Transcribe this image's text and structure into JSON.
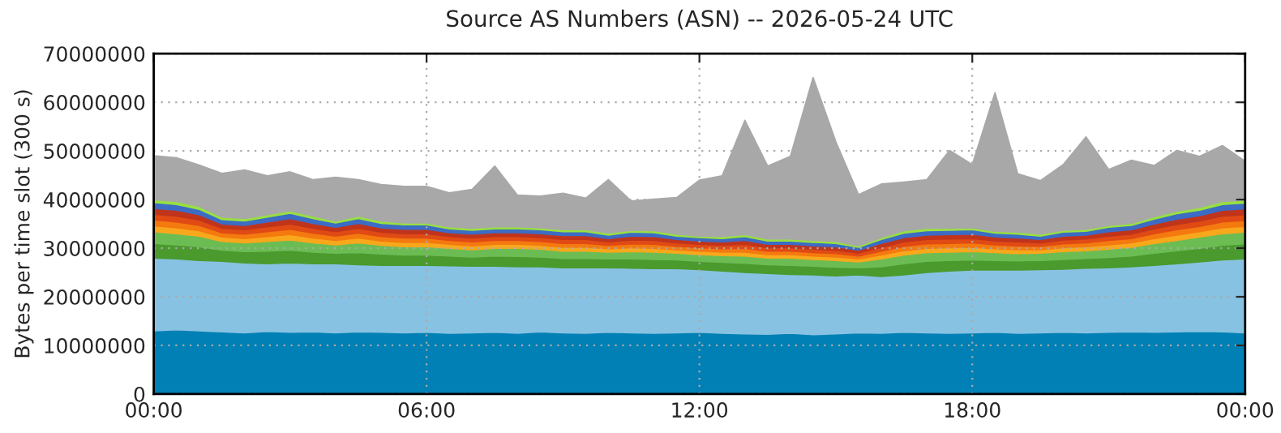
{
  "chart_data": {
    "type": "area",
    "stacked": true,
    "title": "Source AS Numbers (ASN) -- 2026-05-24 UTC",
    "ylabel": "Bytes per time slot (300 s)",
    "x": [
      0,
      0.5,
      1,
      1.5,
      2,
      2.5,
      3,
      3.5,
      4,
      4.5,
      5,
      5.5,
      6,
      6.5,
      7,
      7.5,
      8,
      8.5,
      9,
      9.5,
      10,
      10.5,
      11,
      11.5,
      12,
      12.5,
      13,
      13.5,
      14,
      14.5,
      15,
      15.5,
      16,
      16.5,
      17,
      17.5,
      18,
      18.5,
      19,
      19.5,
      20,
      20.5,
      21,
      21.5,
      22,
      22.5,
      23,
      23.5,
      24
    ],
    "xlim": [
      0,
      24
    ],
    "xticks": [
      {
        "value": 0,
        "label": "00:00"
      },
      {
        "value": 6,
        "label": "06:00"
      },
      {
        "value": 12,
        "label": "12:00"
      },
      {
        "value": 18,
        "label": "18:00"
      },
      {
        "value": 24,
        "label": "00:00"
      }
    ],
    "ylim": [
      0,
      70000000
    ],
    "yticks": [
      0,
      10000000,
      20000000,
      30000000,
      40000000,
      50000000,
      60000000,
      70000000
    ],
    "grid": true,
    "legend": false,
    "series": [
      {
        "color": "#0080b4",
        "values": [
          13000000.0,
          13200000.0,
          13000000.0,
          12800000.0,
          12600000.0,
          12900000.0,
          12700000.0,
          12800000.0,
          12600000.0,
          12800000.0,
          12700000.0,
          12600000.0,
          12700000.0,
          12500000.0,
          12600000.0,
          12700000.0,
          12500000.0,
          12800000.0,
          12600000.0,
          12500000.0,
          12700000.0,
          12600000.0,
          12500000.0,
          12600000.0,
          12700000.0,
          12500000.0,
          12400000.0,
          12300000.0,
          12500000.0,
          12200000.0,
          12400000.0,
          12600000.0,
          12500000.0,
          12700000.0,
          12600000.0,
          12500000.0,
          12600000.0,
          12700000.0,
          12500000.0,
          12600000.0,
          12700000.0,
          12600000.0,
          12700000.0,
          12800000.0,
          12700000.0,
          12800000.0,
          12900000.0,
          12800000.0,
          12600000.0
        ]
      },
      {
        "color": "#88c2e2",
        "values": [
          15000000.0,
          14600000.0,
          14500000.0,
          14500000.0,
          14400000.0,
          13900000.0,
          14300000.0,
          14000000.0,
          14200000.0,
          13800000.0,
          13800000.0,
          13900000.0,
          13800000.0,
          13900000.0,
          13700000.0,
          13600000.0,
          13700000.0,
          13400000.0,
          13400000.0,
          13500000.0,
          13300000.0,
          13300000.0,
          13300000.0,
          13200000.0,
          12900000.0,
          12800000.0,
          12600000.0,
          12500000.0,
          12100000.0,
          12300000.0,
          11900000.0,
          11900000.0,
          11700000.0,
          11800000.0,
          12400000.0,
          12800000.0,
          12900000.0,
          12800000.0,
          13000000.0,
          13000000.0,
          13000000.0,
          13300000.0,
          13300000.0,
          13400000.0,
          13800000.0,
          14000000.0,
          14300000.0,
          14800000.0,
          15200000.0
        ]
      },
      {
        "color": "#4a9a2e",
        "values": [
          3000000.0,
          2900000.0,
          2800000.0,
          2300000.0,
          2300000.0,
          2600000.0,
          2600000.0,
          2400000.0,
          2200000.0,
          2500000.0,
          2300000.0,
          2100000.0,
          2100000.0,
          2000000.0,
          1900000.0,
          2100000.0,
          2100000.0,
          2000000.0,
          1900000.0,
          1900000.0,
          1800000.0,
          1900000.0,
          1900000.0,
          1800000.0,
          1700000.0,
          1800000.0,
          1900000.0,
          1800000.0,
          1900000.0,
          1800000.0,
          1800000.0,
          1500000.0,
          2000000.0,
          2300000.0,
          2300000.0,
          2200000.0,
          2100000.0,
          2000000.0,
          1900000.0,
          1900000.0,
          2000000.0,
          2000000.0,
          2100000.0,
          2200000.0,
          2500000.0,
          2700000.0,
          2800000.0,
          3000000.0,
          3100000.0
        ]
      },
      {
        "color": "#6cbc54",
        "values": [
          2400000.0,
          2300000.0,
          2200000.0,
          1800000.0,
          1800000.0,
          2000000.0,
          2100000.0,
          1900000.0,
          1700000.0,
          2000000.0,
          1800000.0,
          1700000.0,
          1700000.0,
          1600000.0,
          1500000.0,
          1600000.0,
          1700000.0,
          1600000.0,
          1500000.0,
          1500000.0,
          1400000.0,
          1500000.0,
          1500000.0,
          1400000.0,
          1400000.0,
          1400000.0,
          1500000.0,
          1400000.0,
          1500000.0,
          1400000.0,
          1400000.0,
          1200000.0,
          1600000.0,
          1800000.0,
          1800000.0,
          1700000.0,
          1700000.0,
          1600000.0,
          1500000.0,
          1500000.0,
          1600000.0,
          1600000.0,
          1700000.0,
          1800000.0,
          2000000.0,
          2100000.0,
          2300000.0,
          2400000.0,
          2400000.0
        ]
      },
      {
        "color": "#f8a81c",
        "values": [
          1200000.0,
          1200000.0,
          1100000.0,
          900000.0,
          900000.0,
          1000000.0,
          1100000.0,
          1000000.0,
          900000.0,
          1000000.0,
          900000.0,
          900000.0,
          900000.0,
          800000.0,
          800000.0,
          800000.0,
          800000.0,
          800000.0,
          800000.0,
          800000.0,
          700000.0,
          800000.0,
          800000.0,
          700000.0,
          700000.0,
          700000.0,
          800000.0,
          700000.0,
          700000.0,
          700000.0,
          700000.0,
          600000.0,
          800000.0,
          900000.0,
          900000.0,
          900000.0,
          900000.0,
          800000.0,
          800000.0,
          700000.0,
          800000.0,
          800000.0,
          900000.0,
          900000.0,
          1000000.0,
          1100000.0,
          1100000.0,
          1200000.0,
          1200000.0
        ]
      },
      {
        "color": "#f47a10",
        "values": [
          1200000.0,
          1200000.0,
          1100000.0,
          900000.0,
          900000.0,
          1000000.0,
          1100000.0,
          1000000.0,
          900000.0,
          1000000.0,
          900000.0,
          900000.0,
          900000.0,
          800000.0,
          800000.0,
          800000.0,
          800000.0,
          800000.0,
          800000.0,
          800000.0,
          700000.0,
          800000.0,
          800000.0,
          700000.0,
          700000.0,
          700000.0,
          800000.0,
          700000.0,
          700000.0,
          700000.0,
          700000.0,
          600000.0,
          800000.0,
          900000.0,
          900000.0,
          900000.0,
          900000.0,
          800000.0,
          800000.0,
          700000.0,
          800000.0,
          800000.0,
          900000.0,
          900000.0,
          1000000.0,
          1100000.0,
          1100000.0,
          1200000.0,
          1200000.0
        ]
      },
      {
        "color": "#e04a14",
        "values": [
          1200000.0,
          1200000.0,
          1100000.0,
          900000.0,
          900000.0,
          1000000.0,
          1100000.0,
          1000000.0,
          900000.0,
          1000000.0,
          900000.0,
          900000.0,
          900000.0,
          800000.0,
          800000.0,
          800000.0,
          800000.0,
          800000.0,
          800000.0,
          800000.0,
          700000.0,
          800000.0,
          800000.0,
          700000.0,
          700000.0,
          700000.0,
          800000.0,
          700000.0,
          700000.0,
          700000.0,
          700000.0,
          600000.0,
          800000.0,
          900000.0,
          900000.0,
          900000.0,
          900000.0,
          800000.0,
          800000.0,
          700000.0,
          800000.0,
          800000.0,
          900000.0,
          900000.0,
          1000000.0,
          1100000.0,
          1100000.0,
          1200000.0,
          1200000.0
        ]
      },
      {
        "color": "#c0341c",
        "values": [
          1200000.0,
          1200000.0,
          1100000.0,
          900000.0,
          900000.0,
          1000000.0,
          1100000.0,
          1000000.0,
          900000.0,
          1000000.0,
          900000.0,
          900000.0,
          900000.0,
          800000.0,
          800000.0,
          800000.0,
          800000.0,
          800000.0,
          800000.0,
          800000.0,
          700000.0,
          800000.0,
          800000.0,
          700000.0,
          700000.0,
          700000.0,
          800000.0,
          700000.0,
          700000.0,
          700000.0,
          700000.0,
          600000.0,
          800000.0,
          900000.0,
          900000.0,
          900000.0,
          900000.0,
          800000.0,
          800000.0,
          700000.0,
          800000.0,
          800000.0,
          900000.0,
          900000.0,
          1000000.0,
          1100000.0,
          1100000.0,
          1200000.0,
          1200000.0
        ]
      },
      {
        "color": "#3c6cc4",
        "values": [
          1200000.0,
          1200000.0,
          1100000.0,
          900000.0,
          900000.0,
          1000000.0,
          1100000.0,
          1000000.0,
          900000.0,
          1000000.0,
          900000.0,
          900000.0,
          900000.0,
          800000.0,
          800000.0,
          800000.0,
          800000.0,
          800000.0,
          800000.0,
          800000.0,
          700000.0,
          800000.0,
          800000.0,
          700000.0,
          700000.0,
          700000.0,
          800000.0,
          700000.0,
          700000.0,
          700000.0,
          700000.0,
          600000.0,
          800000.0,
          900000.0,
          900000.0,
          900000.0,
          900000.0,
          800000.0,
          800000.0,
          700000.0,
          800000.0,
          800000.0,
          900000.0,
          900000.0,
          1000000.0,
          1100000.0,
          1100000.0,
          1200000.0,
          1200000.0
        ]
      },
      {
        "color": "#98e040",
        "values": [
          600000.0,
          600000.0,
          600000.0,
          500000.0,
          500000.0,
          500000.0,
          500000.0,
          500000.0,
          400000.0,
          500000.0,
          500000.0,
          400000.0,
          400000.0,
          400000.0,
          400000.0,
          400000.0,
          400000.0,
          400000.0,
          400000.0,
          400000.0,
          400000.0,
          400000.0,
          400000.0,
          400000.0,
          300000.0,
          400000.0,
          400000.0,
          400000.0,
          400000.0,
          400000.0,
          400000.0,
          300000.0,
          400000.0,
          500000.0,
          500000.0,
          400000.0,
          400000.0,
          400000.0,
          400000.0,
          400000.0,
          400000.0,
          400000.0,
          400000.0,
          400000.0,
          500000.0,
          500000.0,
          600000.0,
          600000.0,
          600000.0
        ]
      },
      {
        "color": "#a8a8a8",
        "values": [
          9000000.0,
          9000000.0,
          8500000.0,
          9000000.0,
          10000000.0,
          8000000.0,
          8000000.0,
          7500000.0,
          9000000.0,
          7500000.0,
          7500000.0,
          7500000.0,
          7500000.0,
          7000000.0,
          8000000.0,
          12500000.0,
          6500000.0,
          6500000.0,
          7500000.0,
          6500000.0,
          11000000.0,
          6000000.0,
          6500000.0,
          7500000.0,
          11500000.0,
          12500000.0,
          23500000.0,
          15000000.0,
          17000000.0,
          33500000.0,
          20500000.0,
          10500000.0,
          11000000.0,
          10000000.0,
          10000000.0,
          16000000.0,
          13000000.0,
          28500000.0,
          12000000.0,
          11000000.0,
          13500000.0,
          19000000.0,
          11500000.0,
          13000000.0,
          10500000.0,
          12500000.0,
          10500000.0,
          11500000.0,
          8000000.0
        ]
      }
    ]
  }
}
